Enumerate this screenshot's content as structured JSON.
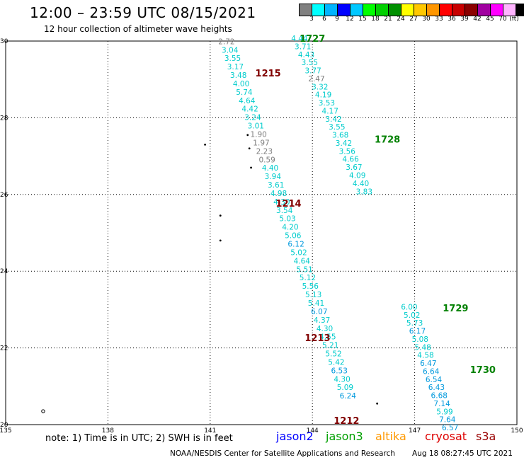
{
  "header": {
    "title": "12:00 – 23:59 UTC 08/15/2021",
    "subtitle": "12 hour collection of altimeter wave heights"
  },
  "legend": {
    "unit": "(ft)",
    "colors": [
      "#808080",
      "#00ffff",
      "#00b4ff",
      "#0000ff",
      "#00c8ff",
      "#00ff00",
      "#00d000",
      "#009000",
      "#ffff00",
      "#ffc800",
      "#ff9600",
      "#ff0000",
      "#c80000",
      "#8b0000",
      "#a000a0",
      "#ff00ff",
      "#ffb4ff",
      "#000000"
    ],
    "labels": [
      "3",
      "6",
      "9",
      "12",
      "15",
      "18",
      "21",
      "24",
      "27",
      "30",
      "33",
      "36",
      "39",
      "42",
      "45",
      "70"
    ]
  },
  "axes": {
    "lon_ticks": [
      "135",
      "138",
      "141",
      "144",
      "147",
      "150"
    ],
    "lat_ticks": [
      "20",
      "22",
      "24",
      "26",
      "28",
      "30"
    ],
    "lon_range": [
      135,
      150
    ],
    "lat_range": [
      20,
      30
    ]
  },
  "footer": {
    "note": "note:  1) Time is in UTC;  2) SWH is in feet",
    "satellites": [
      {
        "name": "jason2",
        "color": "#0000ff"
      },
      {
        "name": "jason3",
        "color": "#00a000"
      },
      {
        "name": "altika",
        "color": "#ff9900"
      },
      {
        "name": "cryosat",
        "color": "#dd0000"
      },
      {
        "name": "s3a",
        "color": "#990000"
      }
    ],
    "credit": "NOAA/NESDIS Center for Satellite Applications and Research",
    "timestamp": "Aug 18 08:27:45 UTC 2021"
  },
  "track_labels": [
    {
      "text": "1727",
      "lon": 144.0,
      "lat": 29.98,
      "color": "#008000"
    },
    {
      "text": "1215",
      "lon": 142.7,
      "lat": 29.08,
      "color": "#800000"
    },
    {
      "text": "1728",
      "lon": 146.2,
      "lat": 27.35,
      "color": "#008000"
    },
    {
      "text": "1214",
      "lon": 143.3,
      "lat": 25.68,
      "color": "#800000"
    },
    {
      "text": "1213",
      "lon": 144.15,
      "lat": 22.18,
      "color": "#800000"
    },
    {
      "text": "1729",
      "lon": 148.2,
      "lat": 22.95,
      "color": "#008000"
    },
    {
      "text": "1730",
      "lon": 149.0,
      "lat": 21.35,
      "color": "#008000"
    },
    {
      "text": "1212",
      "lon": 145.0,
      "lat": 20.02,
      "color": "#800000"
    }
  ],
  "swh_points": [
    {
      "v": "2.72",
      "lon": 141.48,
      "lat": 29.92,
      "color": "#808080"
    },
    {
      "v": "3.04",
      "lon": 141.58,
      "lat": 29.7,
      "color": "#00cccc"
    },
    {
      "v": "3.55",
      "lon": 141.66,
      "lat": 29.48,
      "color": "#00cccc"
    },
    {
      "v": "3.17",
      "lon": 141.74,
      "lat": 29.26,
      "color": "#00cccc"
    },
    {
      "v": "3.48",
      "lon": 141.83,
      "lat": 29.04,
      "color": "#00cccc"
    },
    {
      "v": "4.00",
      "lon": 141.91,
      "lat": 28.82,
      "color": "#00cccc"
    },
    {
      "v": "5.74",
      "lon": 142.0,
      "lat": 28.6,
      "color": "#00cccc"
    },
    {
      "v": "4.64",
      "lon": 142.08,
      "lat": 28.38,
      "color": "#00cccc"
    },
    {
      "v": "4.42",
      "lon": 142.17,
      "lat": 28.16,
      "color": "#00cccc"
    },
    {
      "v": "3.24",
      "lon": 142.25,
      "lat": 27.94,
      "color": "#00cccc"
    },
    {
      "v": "3.01",
      "lon": 142.34,
      "lat": 27.72,
      "color": "#00cccc"
    },
    {
      "v": "1.90",
      "lon": 142.42,
      "lat": 27.5,
      "color": "#808080"
    },
    {
      "v": "1.97",
      "lon": 142.5,
      "lat": 27.28,
      "color": "#808080"
    },
    {
      "v": "2.23",
      "lon": 142.59,
      "lat": 27.06,
      "color": "#808080"
    },
    {
      "v": "0.59",
      "lon": 142.67,
      "lat": 26.84,
      "color": "#808080"
    },
    {
      "v": "4.40",
      "lon": 142.76,
      "lat": 26.62,
      "color": "#00cccc"
    },
    {
      "v": "3.94",
      "lon": 142.84,
      "lat": 26.4,
      "color": "#00cccc"
    },
    {
      "v": "3.61",
      "lon": 142.93,
      "lat": 26.18,
      "color": "#00cccc"
    },
    {
      "v": "4.98",
      "lon": 143.01,
      "lat": 25.96,
      "color": "#00cccc"
    },
    {
      "v": "4.30",
      "lon": 143.1,
      "lat": 25.74,
      "color": "#00cccc"
    },
    {
      "v": "3.54",
      "lon": 143.18,
      "lat": 25.52,
      "color": "#00cccc"
    },
    {
      "v": "5.03",
      "lon": 143.27,
      "lat": 25.3,
      "color": "#00cccc"
    },
    {
      "v": "4.20",
      "lon": 143.35,
      "lat": 25.08,
      "color": "#00cccc"
    },
    {
      "v": "5.06",
      "lon": 143.43,
      "lat": 24.86,
      "color": "#00cccc"
    },
    {
      "v": "6.12",
      "lon": 143.52,
      "lat": 24.64,
      "color": "#0099dd"
    },
    {
      "v": "5.02",
      "lon": 143.6,
      "lat": 24.42,
      "color": "#00cccc"
    },
    {
      "v": "4.64",
      "lon": 143.69,
      "lat": 24.2,
      "color": "#00cccc"
    },
    {
      "v": "5.51",
      "lon": 143.77,
      "lat": 23.98,
      "color": "#00cccc"
    },
    {
      "v": "5.12",
      "lon": 143.86,
      "lat": 23.76,
      "color": "#00cccc"
    },
    {
      "v": "5.56",
      "lon": 143.94,
      "lat": 23.54,
      "color": "#00cccc"
    },
    {
      "v": "5.13",
      "lon": 144.03,
      "lat": 23.32,
      "color": "#00cccc"
    },
    {
      "v": "5.41",
      "lon": 144.11,
      "lat": 23.1,
      "color": "#00cccc"
    },
    {
      "v": "6.07",
      "lon": 144.2,
      "lat": 22.88,
      "color": "#0099dd"
    },
    {
      "v": "4.37",
      "lon": 144.28,
      "lat": 22.66,
      "color": "#00cccc"
    },
    {
      "v": "4.30",
      "lon": 144.36,
      "lat": 22.44,
      "color": "#00cccc"
    },
    {
      "v": "4.55",
      "lon": 144.45,
      "lat": 22.22,
      "color": "#00cccc"
    },
    {
      "v": "5.21",
      "lon": 144.53,
      "lat": 22.0,
      "color": "#00cccc"
    },
    {
      "v": "5.52",
      "lon": 144.62,
      "lat": 21.78,
      "color": "#00cccc"
    },
    {
      "v": "5.42",
      "lon": 144.7,
      "lat": 21.56,
      "color": "#00cccc"
    },
    {
      "v": "6.53",
      "lon": 144.79,
      "lat": 21.34,
      "color": "#0099dd"
    },
    {
      "v": "4.30",
      "lon": 144.87,
      "lat": 21.12,
      "color": "#00cccc"
    },
    {
      "v": "5.09",
      "lon": 144.96,
      "lat": 20.9,
      "color": "#00cccc"
    },
    {
      "v": "6.24",
      "lon": 145.04,
      "lat": 20.68,
      "color": "#0099dd"
    },
    {
      "v": "4.44",
      "lon": 143.62,
      "lat": 30.0,
      "color": "#00cccc"
    },
    {
      "v": "3.71",
      "lon": 143.72,
      "lat": 29.79,
      "color": "#00cccc"
    },
    {
      "v": "4.43",
      "lon": 143.82,
      "lat": 29.58,
      "color": "#00cccc"
    },
    {
      "v": "3.55",
      "lon": 143.92,
      "lat": 29.37,
      "color": "#00cccc"
    },
    {
      "v": "3.77",
      "lon": 144.02,
      "lat": 29.16,
      "color": "#00cccc"
    },
    {
      "v": "2.47",
      "lon": 144.12,
      "lat": 28.95,
      "color": "#808080"
    },
    {
      "v": "3.32",
      "lon": 144.22,
      "lat": 28.74,
      "color": "#00cccc"
    },
    {
      "v": "4.19",
      "lon": 144.32,
      "lat": 28.53,
      "color": "#00cccc"
    },
    {
      "v": "3.53",
      "lon": 144.42,
      "lat": 28.32,
      "color": "#00cccc"
    },
    {
      "v": "4.17",
      "lon": 144.52,
      "lat": 28.11,
      "color": "#00cccc"
    },
    {
      "v": "3.42",
      "lon": 144.62,
      "lat": 27.9,
      "color": "#00cccc"
    },
    {
      "v": "3.55",
      "lon": 144.72,
      "lat": 27.69,
      "color": "#00cccc"
    },
    {
      "v": "3.68",
      "lon": 144.82,
      "lat": 27.48,
      "color": "#00cccc"
    },
    {
      "v": "3.42",
      "lon": 144.92,
      "lat": 27.27,
      "color": "#00cccc"
    },
    {
      "v": "3.56",
      "lon": 145.02,
      "lat": 27.06,
      "color": "#00cccc"
    },
    {
      "v": "4.66",
      "lon": 145.12,
      "lat": 26.85,
      "color": "#00cccc"
    },
    {
      "v": "3.67",
      "lon": 145.22,
      "lat": 26.64,
      "color": "#00cccc"
    },
    {
      "v": "4.09",
      "lon": 145.32,
      "lat": 26.43,
      "color": "#00cccc"
    },
    {
      "v": "4.40",
      "lon": 145.42,
      "lat": 26.22,
      "color": "#00cccc"
    },
    {
      "v": "3.83",
      "lon": 145.52,
      "lat": 26.01,
      "color": "#00cccc"
    },
    {
      "v": "6.00",
      "lon": 146.84,
      "lat": 23.0,
      "color": "#00cccc"
    },
    {
      "v": "5.02",
      "lon": 146.92,
      "lat": 22.79,
      "color": "#00cccc"
    },
    {
      "v": "5.73",
      "lon": 147.0,
      "lat": 22.58,
      "color": "#00cccc"
    },
    {
      "v": "6.17",
      "lon": 147.08,
      "lat": 22.37,
      "color": "#0099dd"
    },
    {
      "v": "5.08",
      "lon": 147.16,
      "lat": 22.16,
      "color": "#00cccc"
    },
    {
      "v": "5.48",
      "lon": 147.24,
      "lat": 21.95,
      "color": "#00cccc"
    },
    {
      "v": "4.58",
      "lon": 147.32,
      "lat": 21.74,
      "color": "#00cccc"
    },
    {
      "v": "6.47",
      "lon": 147.4,
      "lat": 21.53,
      "color": "#0099dd"
    },
    {
      "v": "6.64",
      "lon": 147.48,
      "lat": 21.32,
      "color": "#0099dd"
    },
    {
      "v": "6.54",
      "lon": 147.56,
      "lat": 21.11,
      "color": "#0099dd"
    },
    {
      "v": "6.43",
      "lon": 147.64,
      "lat": 20.9,
      "color": "#0099dd"
    },
    {
      "v": "6.68",
      "lon": 147.72,
      "lat": 20.69,
      "color": "#0099dd"
    },
    {
      "v": "7.14",
      "lon": 147.8,
      "lat": 20.48,
      "color": "#0099dd"
    },
    {
      "v": "5.99",
      "lon": 147.88,
      "lat": 20.27,
      "color": "#00cccc"
    },
    {
      "v": "7.64",
      "lon": 147.96,
      "lat": 20.06,
      "color": "#0099dd"
    },
    {
      "v": "6.57",
      "lon": 148.04,
      "lat": 19.85,
      "color": "#0099dd"
    }
  ],
  "islands": [
    {
      "name": "island-small-1",
      "lon": 140.85,
      "lat": 27.3
    },
    {
      "name": "island-chain-1",
      "lon": 142.1,
      "lat": 27.55
    },
    {
      "name": "island-chain-2",
      "lon": 142.15,
      "lat": 27.2
    },
    {
      "name": "island-chain-3",
      "lon": 142.2,
      "lat": 26.7
    },
    {
      "name": "island-small-2",
      "lon": 141.3,
      "lat": 25.45
    },
    {
      "name": "island-small-3",
      "lon": 141.3,
      "lat": 24.8
    },
    {
      "name": "island-small-4",
      "lon": 145.9,
      "lat": 20.55
    },
    {
      "name": "island-small-5",
      "lon": 136.1,
      "lat": 20.35
    }
  ]
}
